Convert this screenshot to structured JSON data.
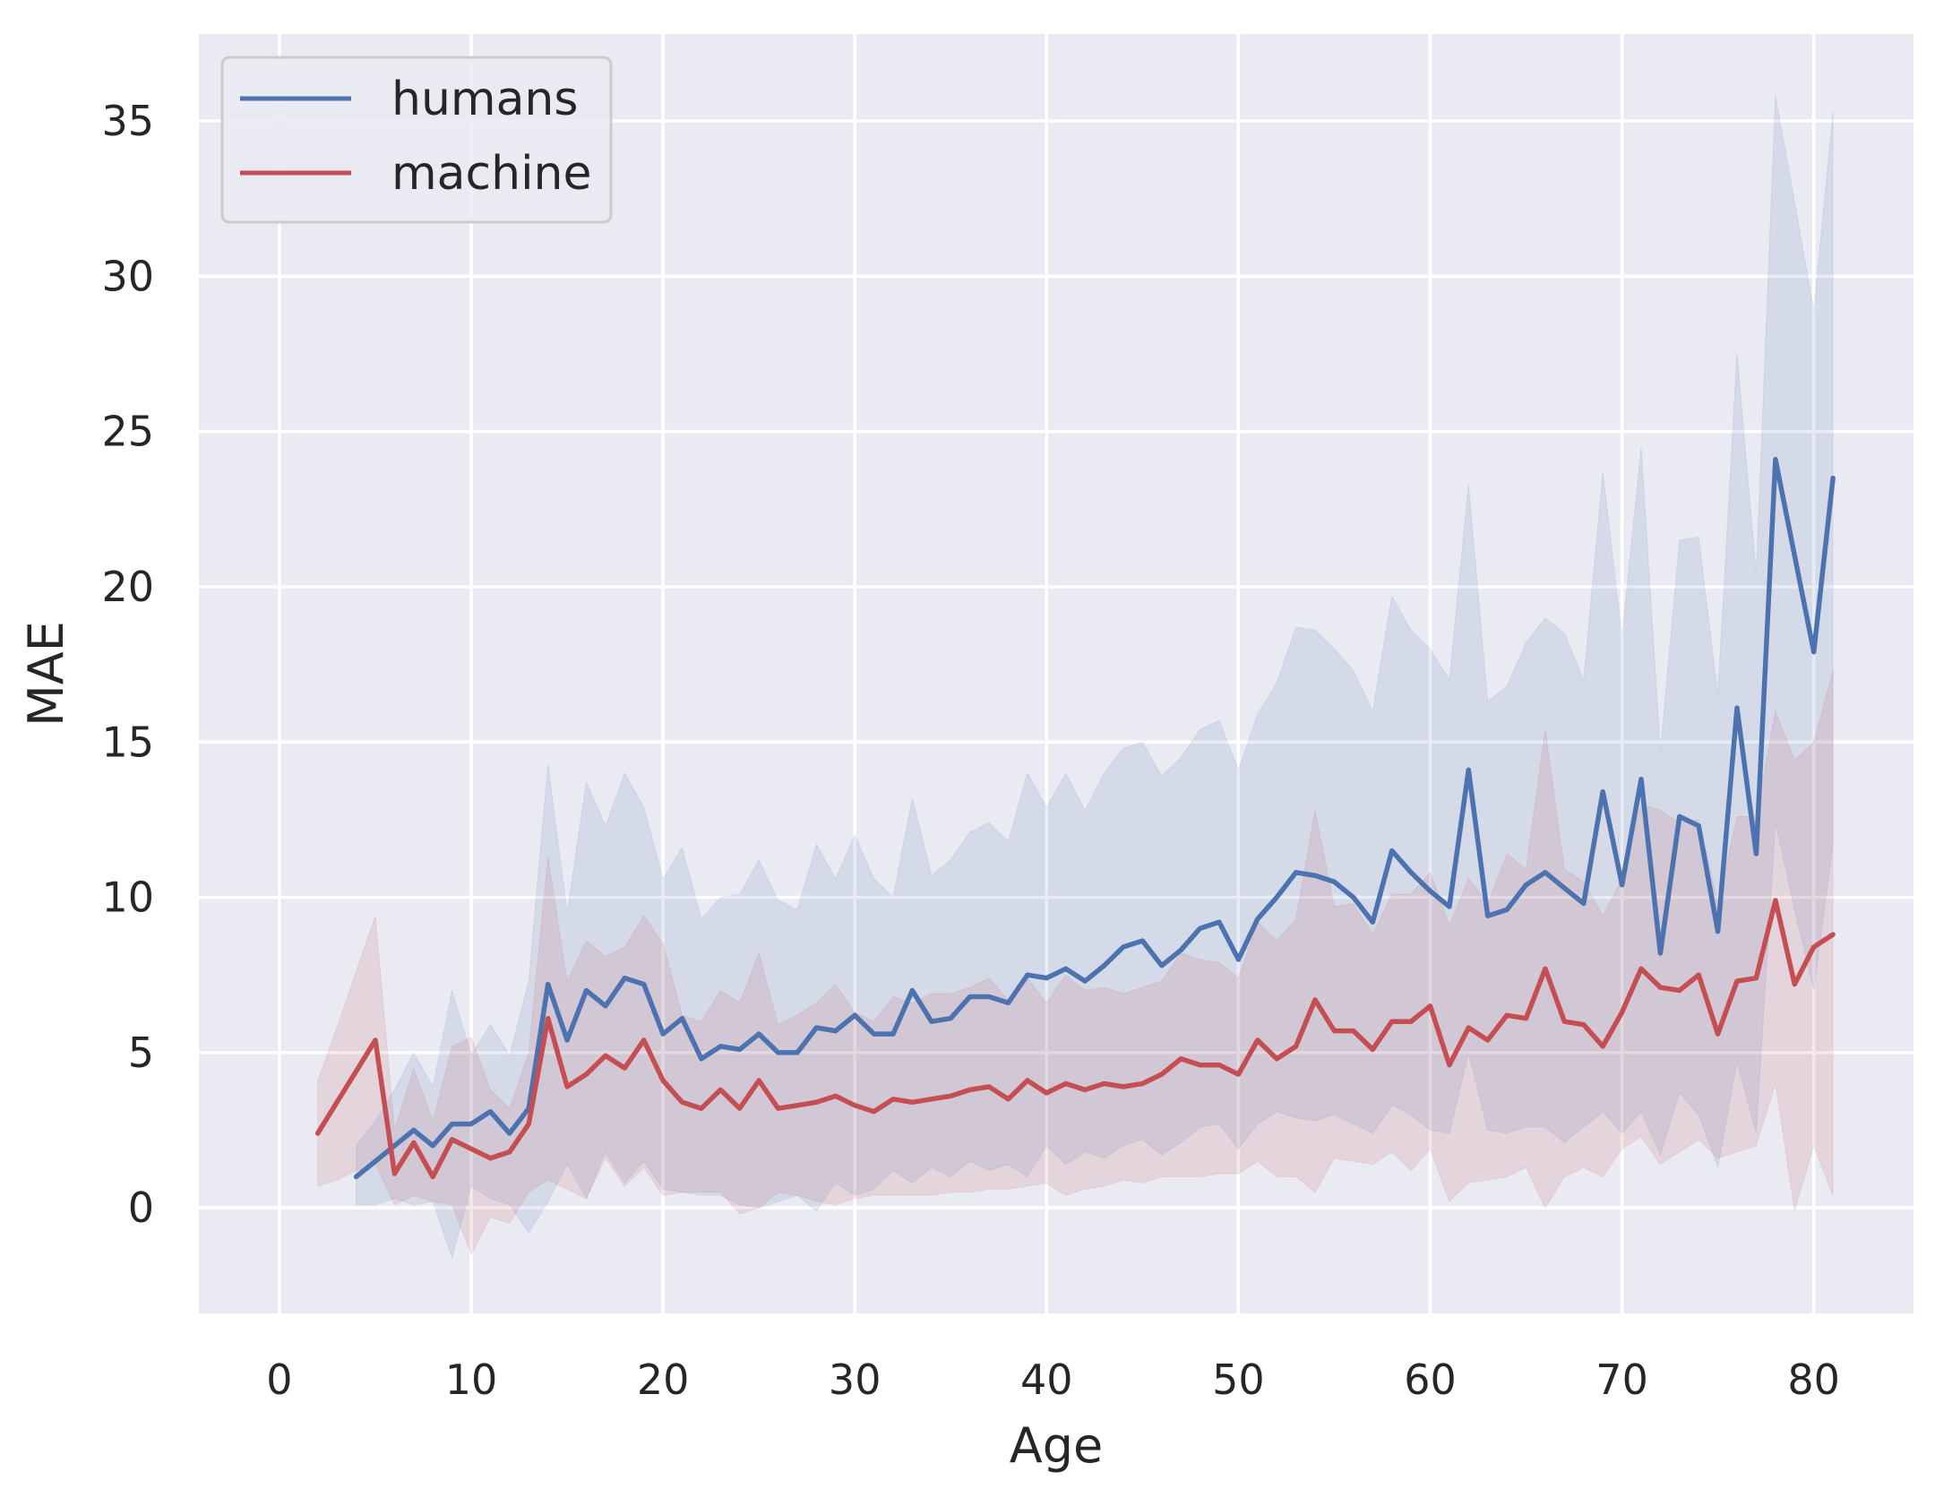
{
  "chart_data": {
    "type": "line",
    "xlabel": "Age",
    "ylabel": "MAE",
    "xlim": [
      -4.2,
      85.2
    ],
    "ylim": [
      -3.4,
      37.8
    ],
    "xticks": [
      0,
      10,
      20,
      30,
      40,
      50,
      60,
      70,
      80
    ],
    "yticks": [
      0,
      5,
      10,
      15,
      20,
      25,
      30,
      35
    ],
    "grid": true,
    "background": "#eaeaf2",
    "grid_color": "#ffffff",
    "legend_position": "top-left",
    "series": [
      {
        "name": "humans",
        "color": "#4c72b0",
        "x": [
          4,
          5,
          6,
          7,
          8,
          9,
          10,
          11,
          12,
          13,
          14,
          15,
          16,
          17,
          18,
          19,
          20,
          21,
          22,
          23,
          24,
          25,
          26,
          27,
          28,
          29,
          30,
          31,
          32,
          33,
          34,
          35,
          36,
          37,
          38,
          39,
          40,
          41,
          42,
          43,
          44,
          45,
          46,
          47,
          48,
          49,
          50,
          51,
          52,
          53,
          54,
          55,
          56,
          57,
          58,
          59,
          60,
          61,
          62,
          63,
          64,
          65,
          66,
          67,
          68,
          69,
          70,
          71,
          72,
          73,
          74,
          75,
          76,
          77,
          78,
          79,
          80,
          81
        ],
        "y": [
          1.0,
          1.5,
          2.0,
          2.5,
          2.0,
          2.7,
          2.7,
          3.1,
          2.4,
          3.2,
          7.2,
          5.4,
          7.0,
          6.5,
          7.4,
          7.2,
          5.6,
          6.1,
          4.8,
          5.2,
          5.1,
          5.6,
          5.0,
          5.0,
          5.8,
          5.7,
          6.2,
          5.6,
          5.6,
          7.0,
          6.0,
          6.1,
          6.8,
          6.8,
          6.6,
          7.5,
          7.4,
          7.7,
          7.3,
          7.8,
          8.4,
          8.6,
          7.8,
          8.3,
          9.0,
          9.2,
          8.0,
          9.3,
          10.0,
          10.8,
          10.7,
          10.5,
          10.0,
          9.2,
          11.5,
          10.8,
          10.2,
          9.7,
          14.1,
          9.4,
          9.6,
          10.4,
          10.8,
          10.3,
          9.8,
          13.4,
          10.4,
          13.8,
          8.2,
          12.6,
          12.3,
          8.9,
          16.1,
          11.4,
          24.1,
          21.0,
          17.9,
          23.5
        ],
        "ci_upper": [
          2.0,
          2.8,
          3.8,
          5.0,
          3.9,
          7.0,
          4.9,
          5.9,
          4.9,
          7.3,
          14.3,
          9.5,
          13.7,
          12.3,
          14.0,
          12.9,
          10.6,
          11.6,
          9.3,
          10.0,
          10.1,
          11.2,
          9.9,
          9.6,
          11.7,
          10.6,
          12.0,
          10.6,
          10.0,
          13.2,
          10.7,
          11.2,
          12.1,
          12.4,
          11.8,
          14.0,
          12.9,
          14.0,
          12.8,
          14.0,
          14.8,
          15.0,
          13.9,
          14.5,
          15.4,
          15.7,
          14.1,
          15.9,
          16.9,
          18.7,
          18.6,
          18.0,
          17.3,
          16.0,
          19.7,
          18.6,
          18.0,
          17.0,
          23.3,
          16.3,
          16.8,
          18.2,
          19.0,
          18.5,
          17.0,
          23.7,
          18.4,
          24.5,
          14.7,
          21.5,
          21.6,
          16.5,
          27.5,
          20.4,
          35.8,
          32.4,
          28.9,
          35.3
        ],
        "ci_lower": [
          0.1,
          0.1,
          0.3,
          0.1,
          0.2,
          -1.6,
          0.7,
          0.3,
          0.1,
          -0.8,
          0.2,
          1.4,
          0.3,
          1.8,
          0.8,
          1.5,
          0.6,
          0.5,
          0.4,
          0.4,
          0.1,
          0.0,
          0.2,
          0.4,
          -0.1,
          0.8,
          0.4,
          0.6,
          1.2,
          0.8,
          1.3,
          1.0,
          1.5,
          1.2,
          1.4,
          1.0,
          2.0,
          1.4,
          1.8,
          1.6,
          2.0,
          2.2,
          1.7,
          2.1,
          2.6,
          2.7,
          1.9,
          2.7,
          3.1,
          2.9,
          2.8,
          3.0,
          2.7,
          2.4,
          3.3,
          3.0,
          2.5,
          2.4,
          5.0,
          2.5,
          2.4,
          2.6,
          2.6,
          2.1,
          2.6,
          3.1,
          2.4,
          3.1,
          1.7,
          3.7,
          3.0,
          1.3,
          4.7,
          2.4,
          12.4,
          9.6,
          7.0,
          11.7
        ]
      },
      {
        "name": "machine",
        "color": "#c44e52",
        "x": [
          2,
          3,
          4,
          5,
          6,
          7,
          8,
          9,
          10,
          11,
          12,
          13,
          14,
          15,
          16,
          17,
          18,
          19,
          20,
          21,
          22,
          23,
          24,
          25,
          26,
          27,
          28,
          29,
          30,
          31,
          32,
          33,
          34,
          35,
          36,
          37,
          38,
          39,
          40,
          41,
          42,
          43,
          44,
          45,
          46,
          47,
          48,
          49,
          50,
          51,
          52,
          53,
          54,
          55,
          56,
          57,
          58,
          59,
          60,
          61,
          62,
          63,
          64,
          65,
          66,
          67,
          68,
          69,
          70,
          71,
          72,
          73,
          74,
          75,
          76,
          77,
          78,
          79,
          80,
          81
        ],
        "y": [
          2.4,
          3.4,
          4.4,
          5.4,
          1.1,
          2.1,
          1.0,
          2.2,
          1.9,
          1.6,
          1.8,
          2.7,
          6.1,
          3.9,
          4.3,
          4.9,
          4.5,
          5.4,
          4.1,
          3.4,
          3.2,
          3.8,
          3.2,
          4.1,
          3.2,
          3.3,
          3.4,
          3.6,
          3.3,
          3.1,
          3.5,
          3.4,
          3.5,
          3.6,
          3.8,
          3.9,
          3.5,
          4.1,
          3.7,
          4.0,
          3.8,
          4.0,
          3.9,
          4.0,
          4.3,
          4.8,
          4.6,
          4.6,
          4.3,
          5.4,
          4.8,
          5.2,
          6.7,
          5.7,
          5.7,
          5.1,
          6.0,
          6.0,
          6.5,
          4.6,
          5.8,
          5.4,
          6.2,
          6.1,
          7.7,
          6.0,
          5.9,
          5.2,
          6.3,
          7.7,
          7.1,
          7.0,
          7.5,
          5.6,
          7.3,
          7.4,
          9.9,
          7.2,
          8.4,
          8.8
        ],
        "ci_upper": [
          4.1,
          5.8,
          7.6,
          9.4,
          2.5,
          4.5,
          2.8,
          5.2,
          5.5,
          3.8,
          3.2,
          5.0,
          11.3,
          7.3,
          8.6,
          8.1,
          8.4,
          9.4,
          8.5,
          6.2,
          6.0,
          7.0,
          6.6,
          8.2,
          5.9,
          6.2,
          6.6,
          7.2,
          6.3,
          6.0,
          6.8,
          6.6,
          6.9,
          6.9,
          7.1,
          7.4,
          6.7,
          7.4,
          6.6,
          7.5,
          7.0,
          7.1,
          6.9,
          7.1,
          7.3,
          8.2,
          8.0,
          7.9,
          7.4,
          9.2,
          8.6,
          9.3,
          12.8,
          9.7,
          9.8,
          8.8,
          10.1,
          10.1,
          10.8,
          9.1,
          10.6,
          9.8,
          11.4,
          10.9,
          15.4,
          10.9,
          10.5,
          9.4,
          10.6,
          13.0,
          12.8,
          12.4,
          12.5,
          9.8,
          12.6,
          12.6,
          16.0,
          14.4,
          15.0,
          17.3
        ],
        "ci_lower": [
          0.7,
          0.9,
          1.2,
          1.4,
          0.1,
          0.4,
          0.2,
          0.1,
          -1.5,
          -0.3,
          -0.5,
          0.5,
          0.9,
          0.6,
          0.3,
          1.6,
          0.7,
          1.3,
          0.4,
          0.5,
          0.5,
          0.5,
          -0.2,
          0.0,
          0.5,
          0.4,
          0.2,
          0.1,
          0.3,
          0.4,
          0.4,
          0.4,
          0.4,
          0.5,
          0.5,
          0.6,
          0.6,
          0.7,
          0.8,
          0.4,
          0.6,
          0.7,
          0.9,
          0.8,
          1.0,
          1.0,
          1.0,
          1.1,
          1.1,
          1.5,
          1.0,
          1.0,
          0.5,
          1.6,
          1.5,
          1.4,
          1.8,
          1.2,
          1.9,
          0.2,
          0.8,
          0.9,
          1.0,
          1.3,
          0.0,
          1.0,
          1.3,
          1.0,
          1.9,
          2.3,
          1.4,
          1.8,
          2.2,
          1.6,
          1.8,
          2.0,
          4.0,
          -0.1,
          2.0,
          0.4
        ]
      }
    ]
  }
}
